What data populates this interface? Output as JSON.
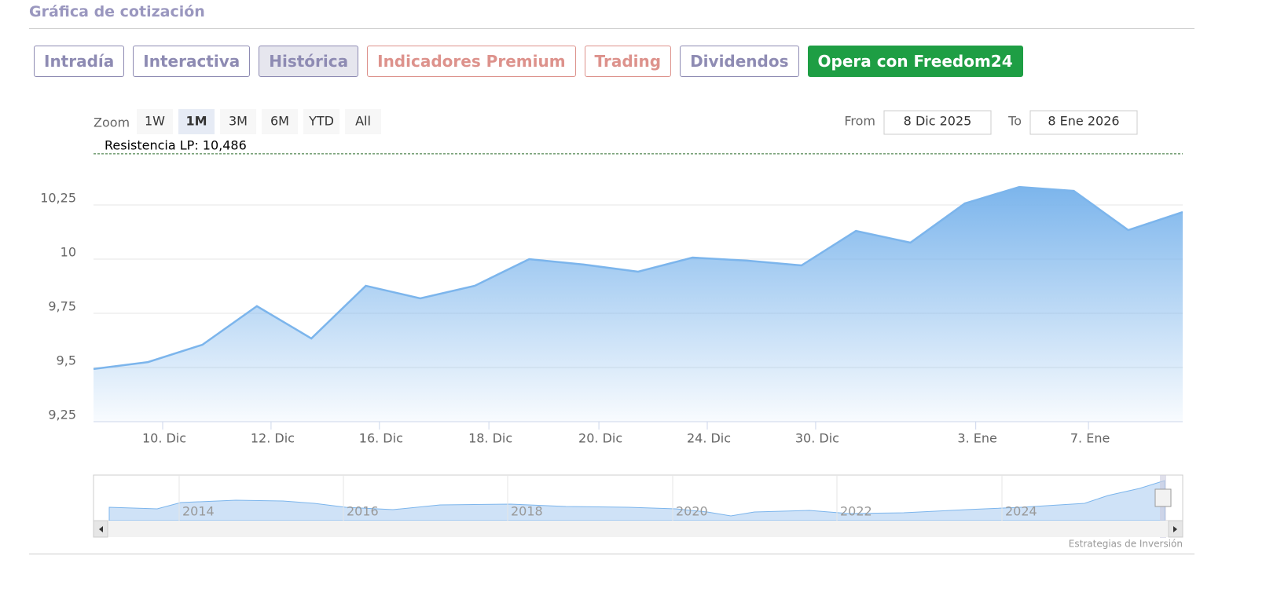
{
  "header": {
    "title": "Gráfica de cotización"
  },
  "tabs": [
    "Intradía",
    "Interactiva",
    "Histórica",
    "Indicadores Premium",
    "Trading",
    "Dividendos",
    "Opera con Freedom24"
  ],
  "zoom": {
    "label": "Zoom",
    "buttons": [
      "1W",
      "1M",
      "3M",
      "6M",
      "YTD",
      "All"
    ],
    "selected": "1M"
  },
  "range": {
    "from_label": "From",
    "from": "8 Dic 2025",
    "to_label": "To",
    "to": "8 Ene 2026"
  },
  "chart_data": {
    "type": "area",
    "color": "#7cb5ec",
    "grid": true,
    "categories": [
      null,
      null,
      null,
      null,
      null,
      null,
      null,
      null,
      null,
      null,
      null,
      null,
      null,
      null,
      null,
      null,
      null,
      null,
      null,
      null,
      null
    ],
    "values": [
      9.493,
      9.525,
      9.605,
      9.783,
      9.634,
      9.877,
      9.819,
      9.877,
      10.0,
      9.975,
      9.942,
      10.007,
      9.993,
      9.971,
      10.13,
      10.076,
      10.257,
      10.333,
      10.315,
      10.134,
      10.217
    ],
    "xlim": [
      0,
      20
    ],
    "xticks": [
      {
        "value": 1.27,
        "label": "10. Dic"
      },
      {
        "value": 3.26,
        "label": "12. Dic"
      },
      {
        "value": 5.25,
        "label": "16. Dic"
      },
      {
        "value": 7.26,
        "label": "18. Dic"
      },
      {
        "value": 9.28,
        "label": "20. Dic"
      },
      {
        "value": 11.27,
        "label": "24. Dic"
      },
      {
        "value": 13.26,
        "label": "30. Dic"
      },
      {
        "value": 16.2,
        "label": "3. Ene"
      },
      {
        "value": 18.27,
        "label": "7. Ene"
      }
    ],
    "ylim": [
      9.25,
      10.5
    ],
    "yticks": [
      {
        "value": 9.25,
        "label": "9,25"
      },
      {
        "value": 9.5,
        "label": "9,5"
      },
      {
        "value": 9.75,
        "label": "9,75"
      },
      10,
      {
        "value": 10.25,
        "label": "10,25"
      }
    ],
    "plot_lines": [
      {
        "value": 10.486,
        "label": "Resistencia LP: 10,486"
      }
    ]
  },
  "navigator": {
    "labels": [
      "2014",
      "2016",
      "2018",
      "2020",
      "2022",
      "2024"
    ]
  },
  "credit": "Estrategias de Inversión"
}
